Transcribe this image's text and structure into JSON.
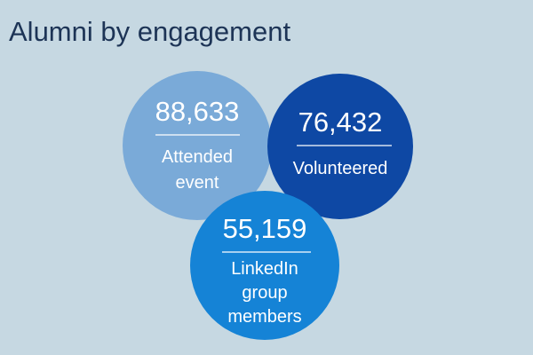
{
  "title": "Alumni by engagement",
  "colors": {
    "background": "#c6d8e2",
    "title": "#1d3456",
    "attended": "#7aaad8",
    "volunteered": "#0e48a4",
    "linkedin": "#1583d6"
  },
  "chart_data": {
    "type": "bubble",
    "title": "Alumni by engagement",
    "items": [
      {
        "value": "88,633",
        "label": [
          "Attended",
          "event"
        ],
        "color": "#7aaad8"
      },
      {
        "value": "76,432",
        "label": [
          "Volunteered"
        ],
        "color": "#0e48a4"
      },
      {
        "value": "55,159",
        "label": [
          "LinkedIn",
          "group",
          "members"
        ],
        "color": "#1583d6"
      }
    ]
  }
}
